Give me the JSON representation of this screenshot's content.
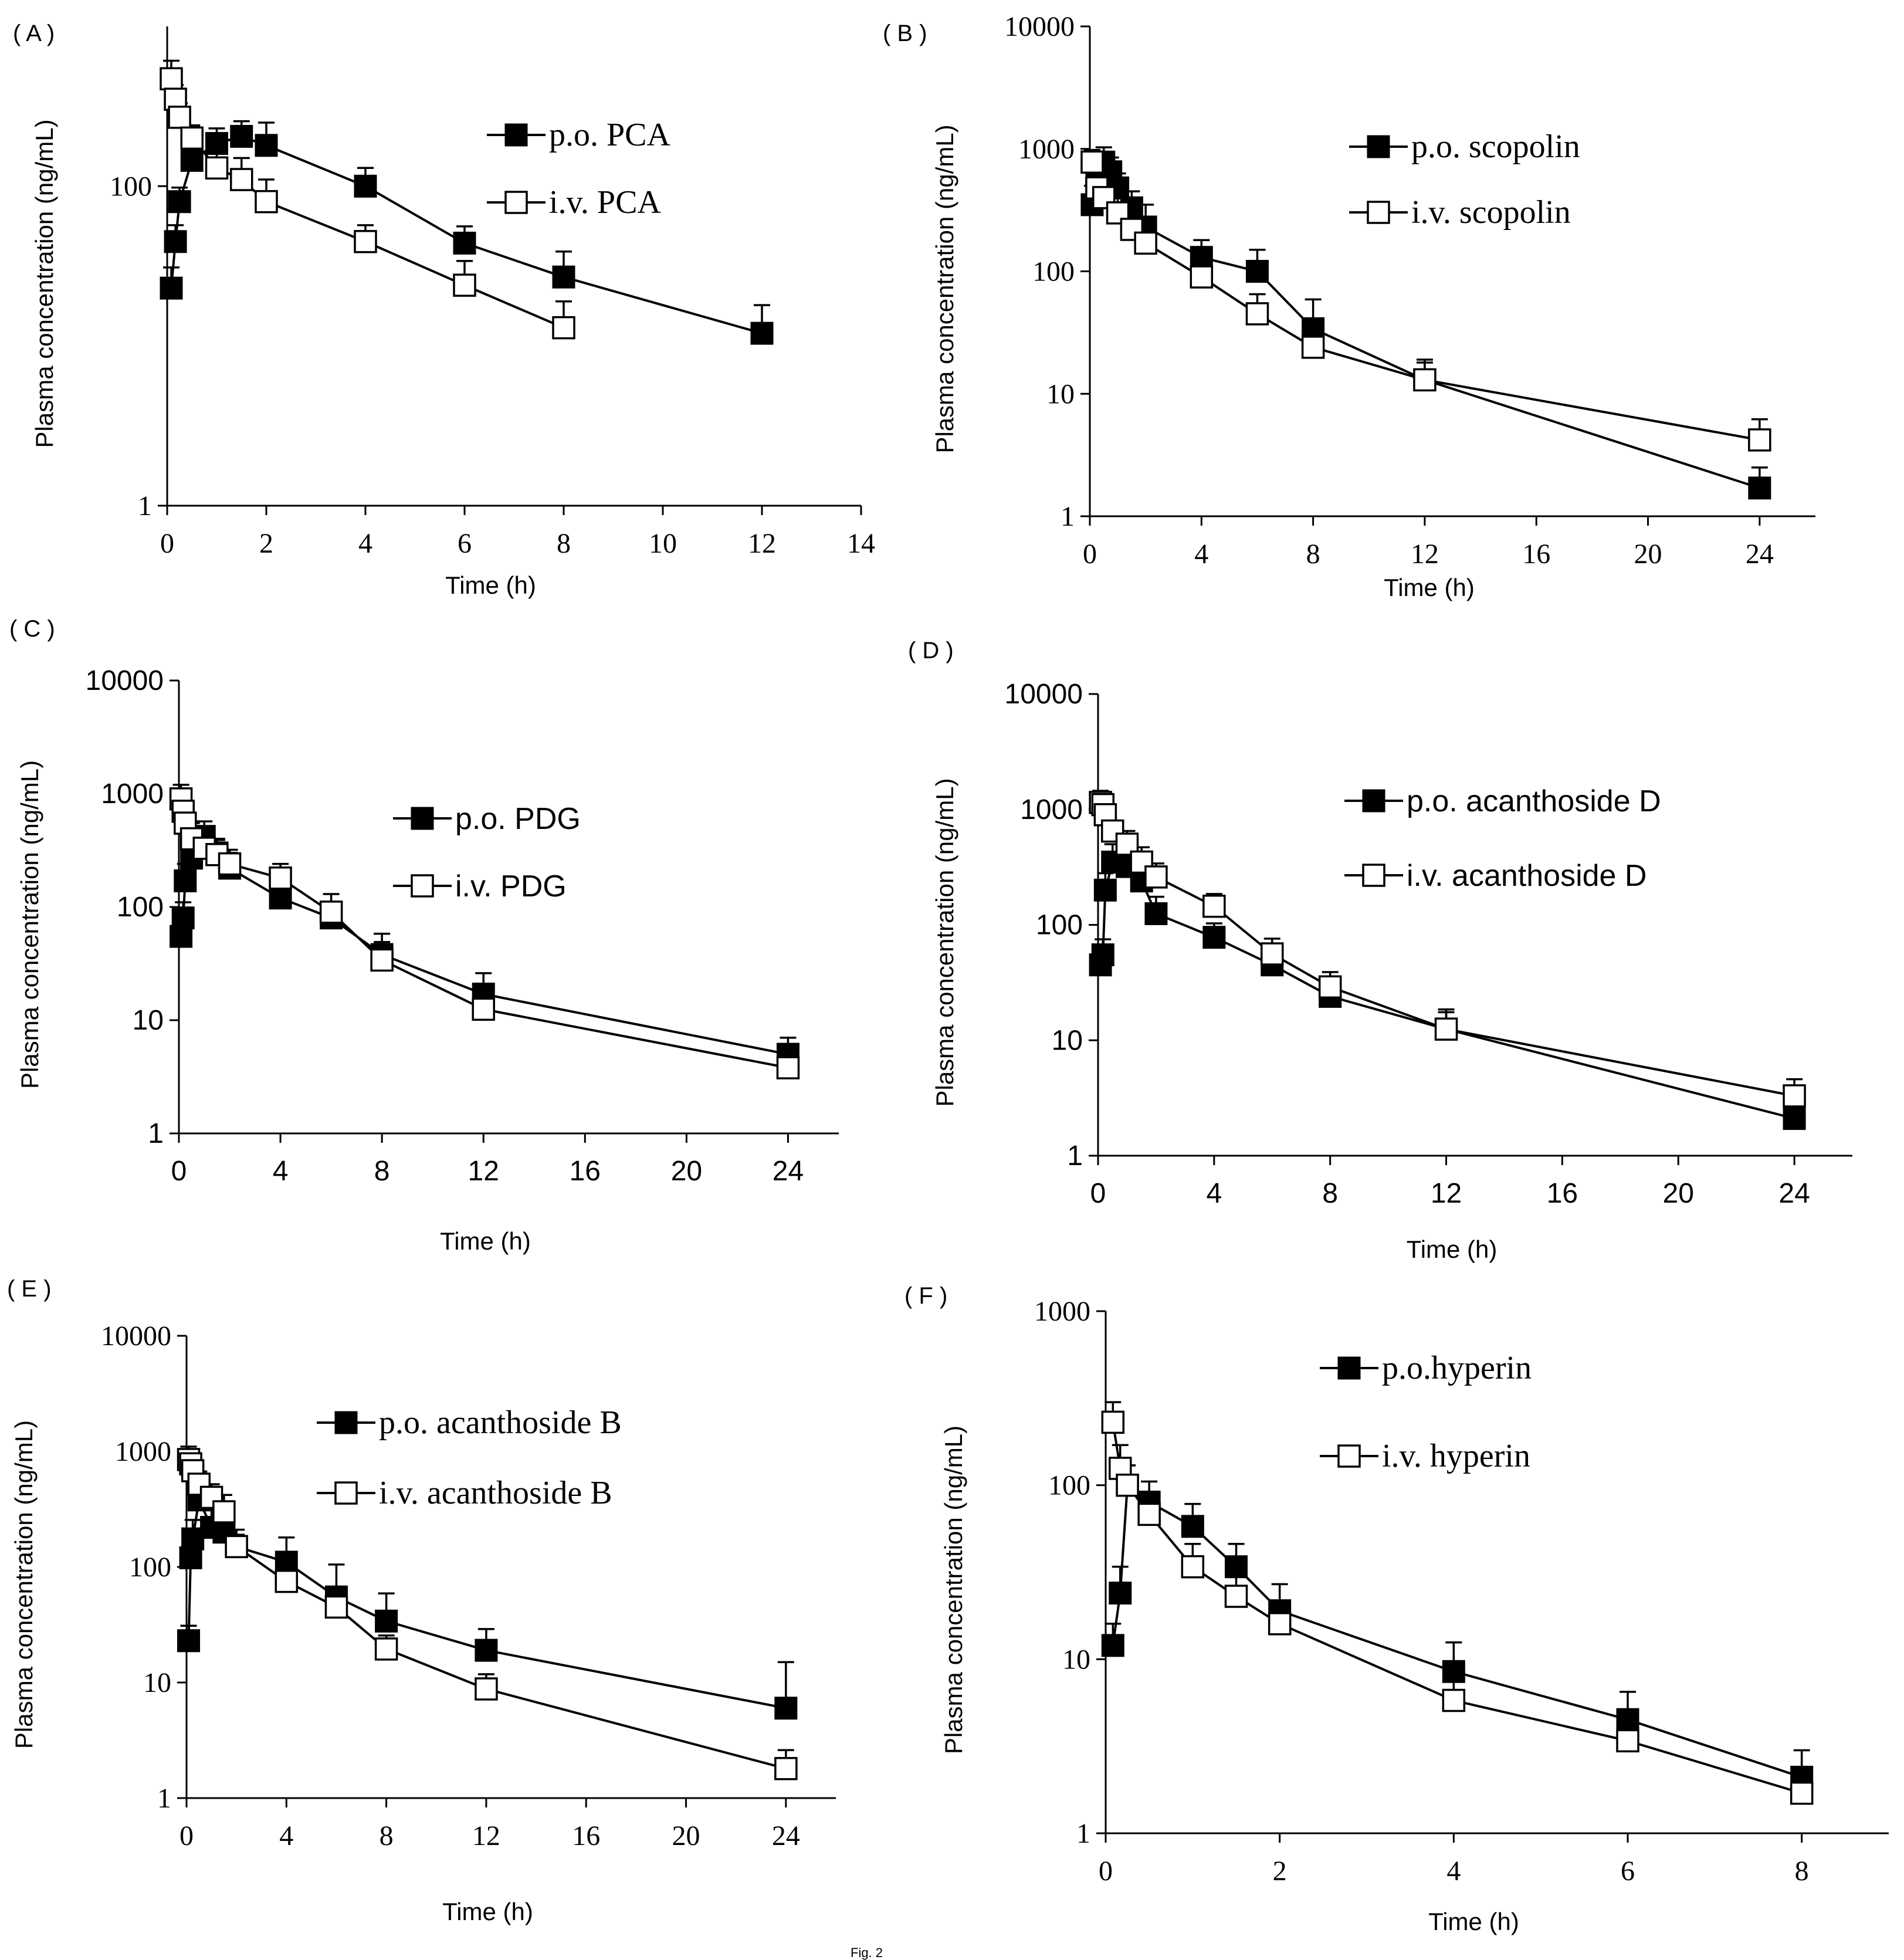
{
  "chart_data": [
    {
      "id": "A",
      "panel_label": "( A )",
      "type": "line",
      "xlabel": "Time (h)",
      "ylabel": "Plasma concentration (ng/mL)",
      "yscale": "log",
      "xlim": [
        0,
        14
      ],
      "ylim": [
        1,
        1000
      ],
      "xticks": [
        0,
        2,
        4,
        6,
        8,
        10,
        12,
        14
      ],
      "yticks": [
        1,
        100
      ],
      "ytick_labels": [
        "1",
        "100"
      ],
      "legend_position": "top-right",
      "series": [
        {
          "name": "p.o. PCA",
          "marker": "filled-square",
          "x": [
            0.083,
            0.167,
            0.25,
            0.5,
            1,
            1.5,
            2,
            4,
            6,
            8,
            12
          ],
          "y": [
            23,
            45,
            80,
            145,
            185,
            205,
            180,
            100,
            44,
            27,
            12
          ],
          "err": [
            8,
            12,
            18,
            25,
            45,
            50,
            70,
            30,
            12,
            12,
            6
          ]
        },
        {
          "name": "i.v. PCA",
          "marker": "open-square",
          "x": [
            0.083,
            0.167,
            0.25,
            0.5,
            1,
            1.5,
            2,
            4,
            6,
            8
          ],
          "y": [
            470,
            350,
            270,
            200,
            130,
            110,
            80,
            45,
            24,
            13
          ],
          "err": [
            140,
            80,
            60,
            40,
            40,
            40,
            30,
            12,
            10,
            6
          ]
        }
      ]
    },
    {
      "id": "B",
      "panel_label": "( B )",
      "type": "line",
      "xlabel": "Time (h)",
      "ylabel": "Plasma concentration (ng/mL)",
      "yscale": "log",
      "xlim": [
        0,
        26
      ],
      "ylim": [
        1,
        10000
      ],
      "xticks": [
        0,
        4,
        8,
        12,
        16,
        20,
        24
      ],
      "yticks": [
        1,
        10,
        100,
        1000,
        10000
      ],
      "ytick_labels": [
        "1",
        "10",
        "100",
        "1000",
        "10000"
      ],
      "legend_position": "top-right",
      "series": [
        {
          "name": "p.o. scopolin",
          "marker": "filled-square",
          "x": [
            0.083,
            0.25,
            0.5,
            0.75,
            1,
            1.5,
            2,
            4,
            6,
            8,
            12,
            24
          ],
          "y": [
            350,
            600,
            780,
            650,
            480,
            330,
            230,
            130,
            100,
            34,
            13,
            1.7
          ],
          "err": [
            150,
            250,
            250,
            200,
            150,
            120,
            120,
            50,
            50,
            25,
            6,
            0.8
          ]
        },
        {
          "name": "i.v. scopolin",
          "marker": "open-square",
          "x": [
            0.083,
            0.25,
            0.5,
            1,
            1.5,
            2,
            4,
            6,
            8,
            12,
            24
          ],
          "y": [
            780,
            480,
            400,
            300,
            220,
            170,
            90,
            45,
            24,
            13,
            4.2
          ],
          "err": [
            200,
            150,
            120,
            100,
            80,
            60,
            30,
            20,
            8,
            5,
            2
          ]
        }
      ]
    },
    {
      "id": "C",
      "panel_label": "( C )",
      "type": "line",
      "xlabel": "Time (h)",
      "ylabel": "Plasma concentration (ng/mL)",
      "yscale": "log",
      "xlim": [
        0,
        26
      ],
      "ylim": [
        1,
        10000
      ],
      "xticks": [
        0,
        4,
        8,
        12,
        16,
        20,
        24
      ],
      "yticks": [
        1,
        10,
        100,
        1000,
        10000
      ],
      "ytick_labels": [
        "1",
        "10",
        "100",
        "1000",
        "10000"
      ],
      "legend_position": "top-center",
      "series": [
        {
          "name": "p.o. PDG",
          "marker": "filled-square",
          "x": [
            0.083,
            0.167,
            0.25,
            0.5,
            1,
            1.5,
            2,
            4,
            6,
            8,
            12,
            24
          ],
          "y": [
            55,
            80,
            170,
            270,
            420,
            300,
            220,
            120,
            80,
            38,
            17,
            5
          ],
          "err": [
            25,
            30,
            70,
            100,
            150,
            100,
            80,
            40,
            30,
            20,
            9,
            2
          ]
        },
        {
          "name": "i.v. PDG",
          "marker": "open-square",
          "x": [
            0.083,
            0.167,
            0.25,
            0.5,
            1,
            1.5,
            2,
            4,
            6,
            8,
            12,
            24
          ],
          "y": [
            900,
            700,
            550,
            400,
            330,
            290,
            240,
            180,
            90,
            34,
            12.5,
            3.8
          ],
          "err": [
            300,
            250,
            200,
            150,
            120,
            100,
            80,
            60,
            40,
            15,
            5,
            1.5
          ]
        }
      ]
    },
    {
      "id": "D",
      "panel_label": "( D )",
      "type": "line",
      "xlabel": "Time (h)",
      "ylabel": "Plasma concentration (ng/mL)",
      "yscale": "log",
      "xlim": [
        0,
        26
      ],
      "ylim": [
        1,
        10000
      ],
      "xticks": [
        0,
        4,
        8,
        12,
        16,
        20,
        24
      ],
      "yticks": [
        1,
        10,
        100,
        1000,
        10000
      ],
      "ytick_labels": [
        "1",
        "10",
        "100",
        "1000",
        "10000"
      ],
      "legend_position": "top-right",
      "series": [
        {
          "name": "p.o. acanthoside D",
          "marker": "filled-square",
          "x": [
            0.083,
            0.167,
            0.25,
            0.5,
            1,
            1.5,
            2,
            4,
            6,
            8,
            12,
            24
          ],
          "y": [
            45,
            55,
            200,
            350,
            320,
            240,
            125,
            78,
            45,
            24,
            12.5,
            2.1
          ],
          "err": [
            15,
            20,
            80,
            150,
            120,
            90,
            50,
            25,
            15,
            8,
            5,
            0.8
          ]
        },
        {
          "name": "i.v. acanthoside D",
          "marker": "open-square",
          "x": [
            0.083,
            0.167,
            0.25,
            0.5,
            1,
            1.5,
            2,
            4,
            6,
            8,
            12,
            24
          ],
          "y": [
            1150,
            1100,
            900,
            650,
            500,
            350,
            260,
            145,
            56,
            29,
            12.5,
            3.3
          ],
          "err": [
            300,
            250,
            200,
            150,
            150,
            120,
            80,
            40,
            20,
            10,
            6,
            1.3
          ]
        }
      ]
    },
    {
      "id": "E",
      "panel_label": "( E )",
      "type": "line",
      "xlabel": "Time (h)",
      "ylabel": "Plasma concentration (ng/mL)",
      "yscale": "log",
      "xlim": [
        0,
        26
      ],
      "ylim": [
        1,
        10000
      ],
      "xticks": [
        0,
        4,
        8,
        12,
        16,
        20,
        24
      ],
      "yticks": [
        1,
        10,
        100,
        1000,
        10000
      ],
      "ytick_labels": [
        "1",
        "10",
        "100",
        "1000",
        "10000"
      ],
      "legend_position": "top-right",
      "series": [
        {
          "name": "p.o. acanthoside B",
          "marker": "filled-square",
          "x": [
            0.083,
            0.167,
            0.25,
            0.5,
            1,
            1.5,
            2,
            4,
            6,
            8,
            12,
            24
          ],
          "y": [
            23,
            120,
            175,
            380,
            220,
            200,
            150,
            110,
            55,
            34,
            19,
            6
          ],
          "err": [
            8,
            50,
            80,
            150,
            100,
            80,
            60,
            70,
            50,
            25,
            10,
            9
          ]
        },
        {
          "name": "i.v. acanthoside B",
          "marker": "open-square",
          "x": [
            0.083,
            0.167,
            0.25,
            0.5,
            1,
            1.5,
            2,
            4,
            6,
            8,
            12,
            24
          ],
          "y": [
            850,
            780,
            680,
            520,
            400,
            300,
            150,
            75,
            45,
            19.5,
            8.8,
            1.8
          ],
          "err": [
            250,
            250,
            200,
            150,
            120,
            120,
            40,
            25,
            15,
            6,
            3,
            0.8
          ]
        }
      ]
    },
    {
      "id": "F",
      "panel_label": "( F )",
      "type": "line",
      "xlabel": "Time (h)",
      "ylabel": "Plasma concentration (ng/mL)",
      "yscale": "log",
      "xlim": [
        0,
        9
      ],
      "ylim": [
        1,
        1000
      ],
      "xticks": [
        0,
        2,
        4,
        6,
        8
      ],
      "yticks": [
        1,
        10,
        100,
        1000
      ],
      "ytick_labels": [
        "1",
        "10",
        "100",
        "1000"
      ],
      "legend_position": "top-right",
      "series": [
        {
          "name": "p.o.hyperin",
          "marker": "filled-square",
          "x": [
            0.083,
            0.167,
            0.25,
            0.5,
            1,
            1.5,
            2,
            4,
            6,
            8
          ],
          "y": [
            12,
            24,
            100,
            80,
            58,
            34,
            19,
            8.5,
            4.5,
            2.1
          ],
          "err": [
            4,
            10,
            30,
            25,
            20,
            12,
            8,
            4,
            2,
            0.9
          ]
        },
        {
          "name": "i.v. hyperin",
          "marker": "open-square",
          "x": [
            0.083,
            0.167,
            0.25,
            0.5,
            1,
            1.5,
            2,
            4,
            6,
            8
          ],
          "y": [
            230,
            125,
            100,
            68,
            34,
            23,
            16,
            5.8,
            3.4,
            1.7
          ],
          "err": [
            70,
            45,
            30,
            20,
            12,
            8,
            5,
            2,
            1.2,
            0.6
          ]
        }
      ]
    }
  ],
  "figure_caption": "Fig. 2"
}
